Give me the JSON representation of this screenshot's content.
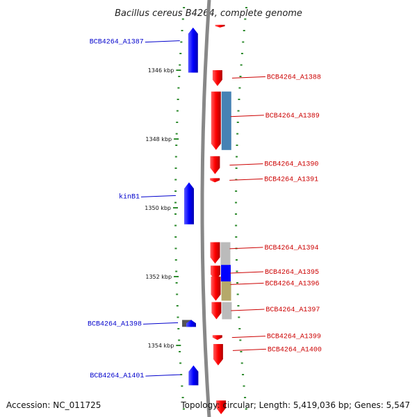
{
  "header": {
    "title": "Bacillus cereus B4264, complete genome"
  },
  "footer": {
    "accession": "Accession: NC_011725",
    "topology": "Topology: circular; Length: 5,419,036 bp; Genes: 5,547"
  },
  "colors": {
    "forward_gene": "#0000ff",
    "reverse_gene": "#ff0000",
    "backbone": "#888888",
    "tick": "#2e8b2e",
    "label_left": "#0000cc",
    "label_right": "#cc0000"
  },
  "kbp_marks": [
    {
      "label": "1346 kbp",
      "kbp": 1346
    },
    {
      "label": "1348 kbp",
      "kbp": 1348
    },
    {
      "label": "1350 kbp",
      "kbp": 1350
    },
    {
      "label": "1352 kbp",
      "kbp": 1352
    },
    {
      "label": "1354 kbp",
      "kbp": 1354
    }
  ],
  "genes": [
    {
      "name": "BCB4264_A1387",
      "strand": "forward",
      "start_kbp": 1344.76,
      "end_kbp": 1346.07,
      "labelled": true
    },
    {
      "name": "BCB4264_A1388",
      "strand": "reverse",
      "start_kbp": 1346.0,
      "end_kbp": 1346.46,
      "labelled": true
    },
    {
      "name": "BCB4264_A1389",
      "strand": "reverse",
      "start_kbp": 1346.62,
      "end_kbp": 1348.32,
      "labelled": true
    },
    {
      "name": "BCB4264_A1390",
      "strand": "reverse",
      "start_kbp": 1348.5,
      "end_kbp": 1349.02,
      "labelled": true
    },
    {
      "name": "BCB4264_A1391",
      "strand": "reverse",
      "start_kbp": 1349.14,
      "end_kbp": 1349.26,
      "labelled": true
    },
    {
      "name": "kinB1",
      "strand": "forward",
      "start_kbp": 1349.26,
      "end_kbp": 1350.48,
      "labelled": true
    },
    {
      "name": "BCB4264_A1394",
      "strand": "reverse",
      "start_kbp": 1351.0,
      "end_kbp": 1351.62,
      "labelled": true
    },
    {
      "name": "BCB4264_A1395",
      "strand": "reverse",
      "start_kbp": 1351.68,
      "end_kbp": 1352.12,
      "labelled": true
    },
    {
      "name": "BCB4264_A1396",
      "strand": "reverse",
      "start_kbp": 1352.0,
      "end_kbp": 1352.7,
      "labelled": true
    },
    {
      "name": "BCB4264_A1397",
      "strand": "reverse",
      "start_kbp": 1352.74,
      "end_kbp": 1353.24,
      "labelled": true
    },
    {
      "name": "BCB4264_A1398",
      "strand": "forward",
      "start_kbp": 1353.26,
      "end_kbp": 1353.46,
      "labelled": true
    },
    {
      "name": "BCB4264_A1399",
      "strand": "reverse",
      "start_kbp": 1353.7,
      "end_kbp": 1353.84,
      "labelled": true
    },
    {
      "name": "BCB4264_A1400",
      "strand": "reverse",
      "start_kbp": 1353.96,
      "end_kbp": 1354.58,
      "labelled": true
    },
    {
      "name": "BCB4264_A1401",
      "strand": "forward",
      "start_kbp": 1354.58,
      "end_kbp": 1355.16,
      "labelled": true
    },
    {
      "name": "",
      "strand": "forward",
      "start_kbp": 1353.26,
      "end_kbp": 1353.46,
      "labelled": false
    },
    {
      "name": "",
      "strand": "reverse",
      "start_kbp": 1344.68,
      "end_kbp": 1344.76,
      "labelled": false
    },
    {
      "name": "",
      "strand": "reverse",
      "start_kbp": 1355.6,
      "end_kbp": 1356.0,
      "labelled": false
    }
  ],
  "features": [
    {
      "strand": "reverse",
      "start_kbp": 1346.62,
      "end_kbp": 1348.32,
      "color": "#4682b4"
    },
    {
      "strand": "reverse",
      "start_kbp": 1351.0,
      "end_kbp": 1351.66,
      "color": "#bbbbbb"
    },
    {
      "strand": "reverse",
      "start_kbp": 1351.66,
      "end_kbp": 1352.14,
      "color": "#0000ff"
    },
    {
      "strand": "reverse",
      "start_kbp": 1352.14,
      "end_kbp": 1352.7,
      "color": "#b5a96a"
    },
    {
      "strand": "reverse",
      "start_kbp": 1352.74,
      "end_kbp": 1353.24,
      "color": "#bbbbbb"
    },
    {
      "strand": "forward",
      "start_kbp": 1353.26,
      "end_kbp": 1353.46,
      "color": "#555555"
    }
  ]
}
